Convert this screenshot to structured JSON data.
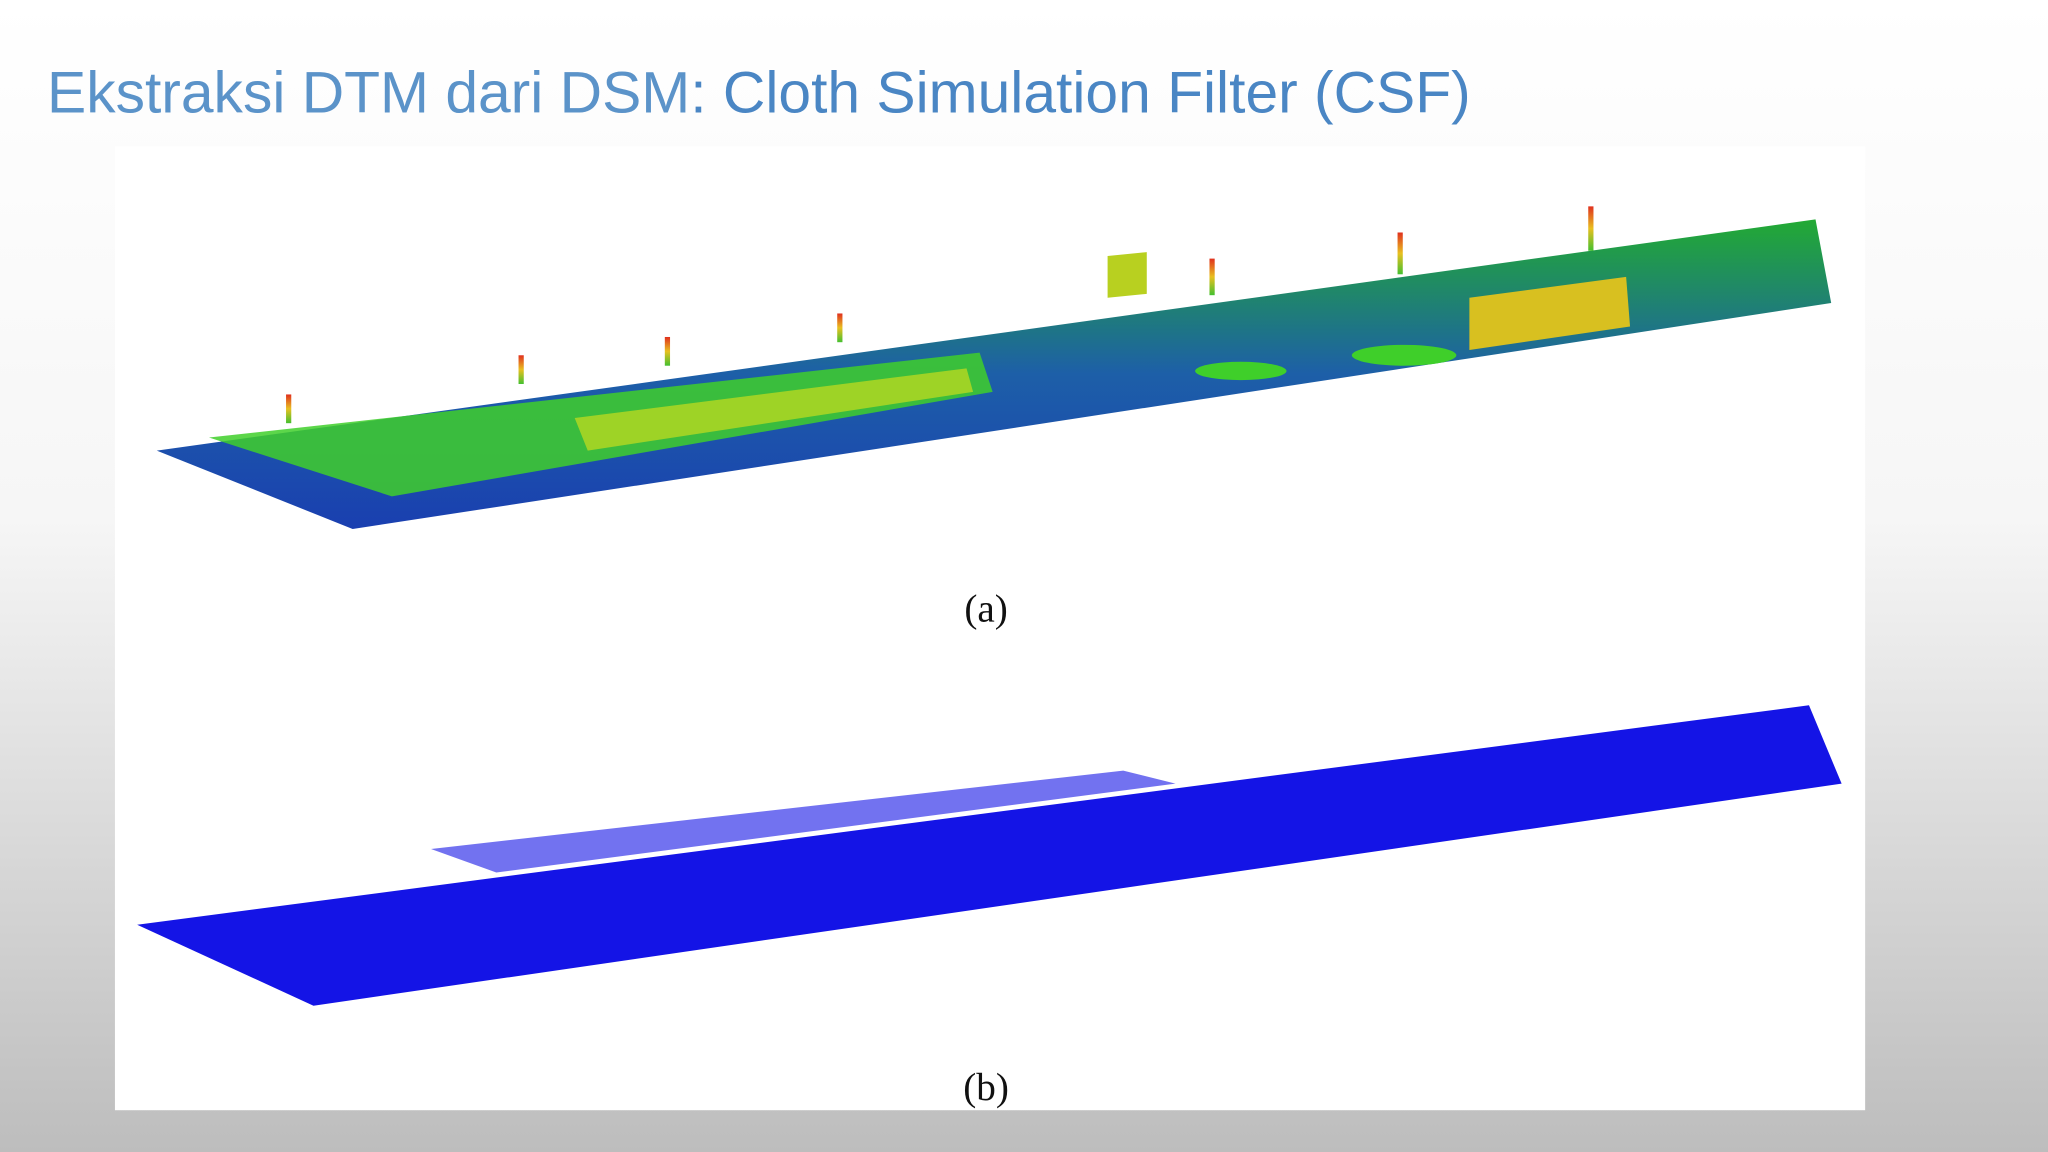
{
  "header": {
    "title_light": "Ekstraksi DTM dari DSM",
    "title_regular": ": Cloth Simulation Filter (CSF)"
  },
  "figure": {
    "caption_a": "(a)",
    "caption_b": "(b)"
  }
}
